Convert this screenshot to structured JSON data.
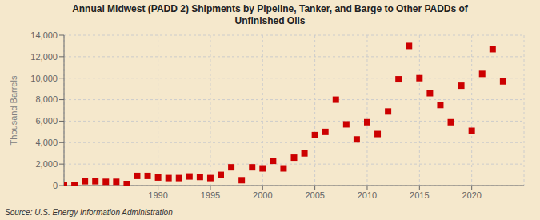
{
  "chart_data": {
    "type": "scatter",
    "title": "Annual Midwest (PADD 2) Shipments by Pipeline, Tanker, and Barge to Other PADDs of\nUnfinished Oils",
    "ylabel": "Thousand Barrels",
    "source": "Source: U.S. Energy Information Administration",
    "background_color": "#f5e8cc",
    "color": "#cc0000",
    "marker": "square",
    "grid": true,
    "xlim": [
      1981,
      2025
    ],
    "xticks": [
      1990,
      1995,
      2000,
      2005,
      2010,
      2015,
      2020
    ],
    "ylim": [
      0,
      14000
    ],
    "yticks": [
      0,
      {
        "value": 2000,
        "label": "2,000"
      },
      {
        "value": 4000,
        "label": "4,000"
      },
      {
        "value": 6000,
        "label": "6,000"
      },
      {
        "value": 8000,
        "label": "8,000"
      },
      {
        "value": 10000,
        "label": "10,000"
      },
      {
        "value": 12000,
        "label": "12,000"
      },
      {
        "value": 14000,
        "label": "14,000"
      }
    ],
    "x": [
      1981,
      1982,
      1983,
      1984,
      1985,
      1986,
      1987,
      1988,
      1989,
      1990,
      1991,
      1992,
      1993,
      1994,
      1995,
      1996,
      1997,
      1998,
      1999,
      2000,
      2001,
      2002,
      2003,
      2004,
      2005,
      2006,
      2007,
      2008,
      2009,
      2010,
      2011,
      2012,
      2013,
      2014,
      2015,
      2016,
      2017,
      2018,
      2019,
      2020,
      2021,
      2022,
      2023
    ],
    "values": [
      30,
      50,
      400,
      400,
      350,
      350,
      150,
      900,
      900,
      750,
      700,
      700,
      850,
      800,
      700,
      1000,
      1700,
      500,
      1700,
      1600,
      2300,
      1600,
      2600,
      3000,
      4700,
      5000,
      8000,
      5700,
      4300,
      5900,
      4800,
      6900,
      9900,
      13000,
      10000,
      8600,
      7500,
      5900,
      9300,
      5100,
      10400,
      12700,
      9700
    ]
  }
}
